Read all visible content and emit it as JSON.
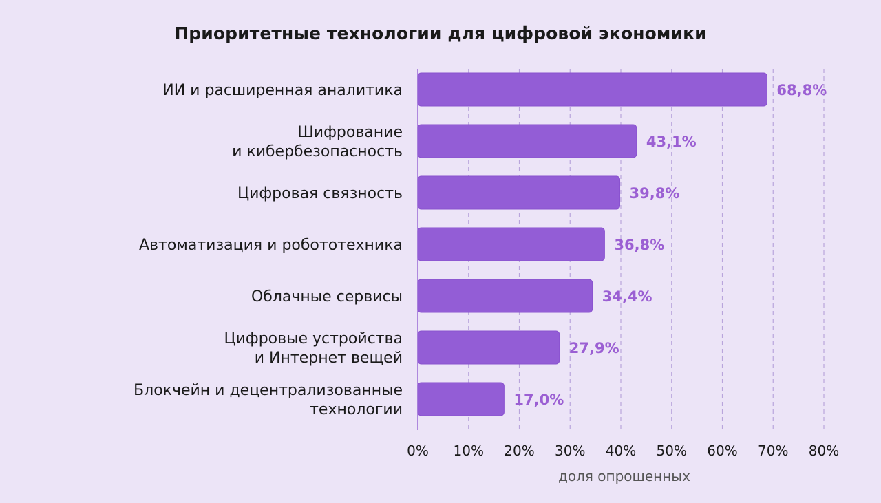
{
  "chart_data": {
    "type": "bar",
    "orientation": "horizontal",
    "title": "Приоритетные технологии для цифровой экономики",
    "xlabel": "доля опрошенных",
    "ylabel": "",
    "categories": [
      [
        "ИИ и расширенная аналитика"
      ],
      [
        "Шифрование",
        "и кибербезопасность"
      ],
      [
        "Цифровая связность"
      ],
      [
        "Автоматизация и робототехника"
      ],
      [
        "Облачные сервисы"
      ],
      [
        "Цифровые устройства",
        "и Интернет вещей"
      ],
      [
        "Блокчейн и децентрализованные",
        "технологии"
      ]
    ],
    "values": [
      68.8,
      43.1,
      39.8,
      36.8,
      34.4,
      27.9,
      17.0
    ],
    "value_labels": [
      "68,8%",
      "43,1%",
      "39,8%",
      "36,8%",
      "34,4%",
      "27,9%",
      "17,0%"
    ],
    "xlim": [
      0,
      80
    ],
    "ticks": [
      0,
      10,
      20,
      30,
      40,
      50,
      60,
      70,
      80
    ],
    "tick_labels": [
      "0%",
      "10%",
      "20%",
      "30%",
      "40%",
      "50%",
      "60%",
      "70%",
      "80%"
    ],
    "grid": "vertical dashed",
    "legend": "none",
    "colors": {
      "bar": "#935dd6",
      "bar_stroke": "#8a52cf",
      "value_label": "#9b5fd3",
      "grid": "#b9a5dc",
      "background": "#ece4f7"
    }
  }
}
